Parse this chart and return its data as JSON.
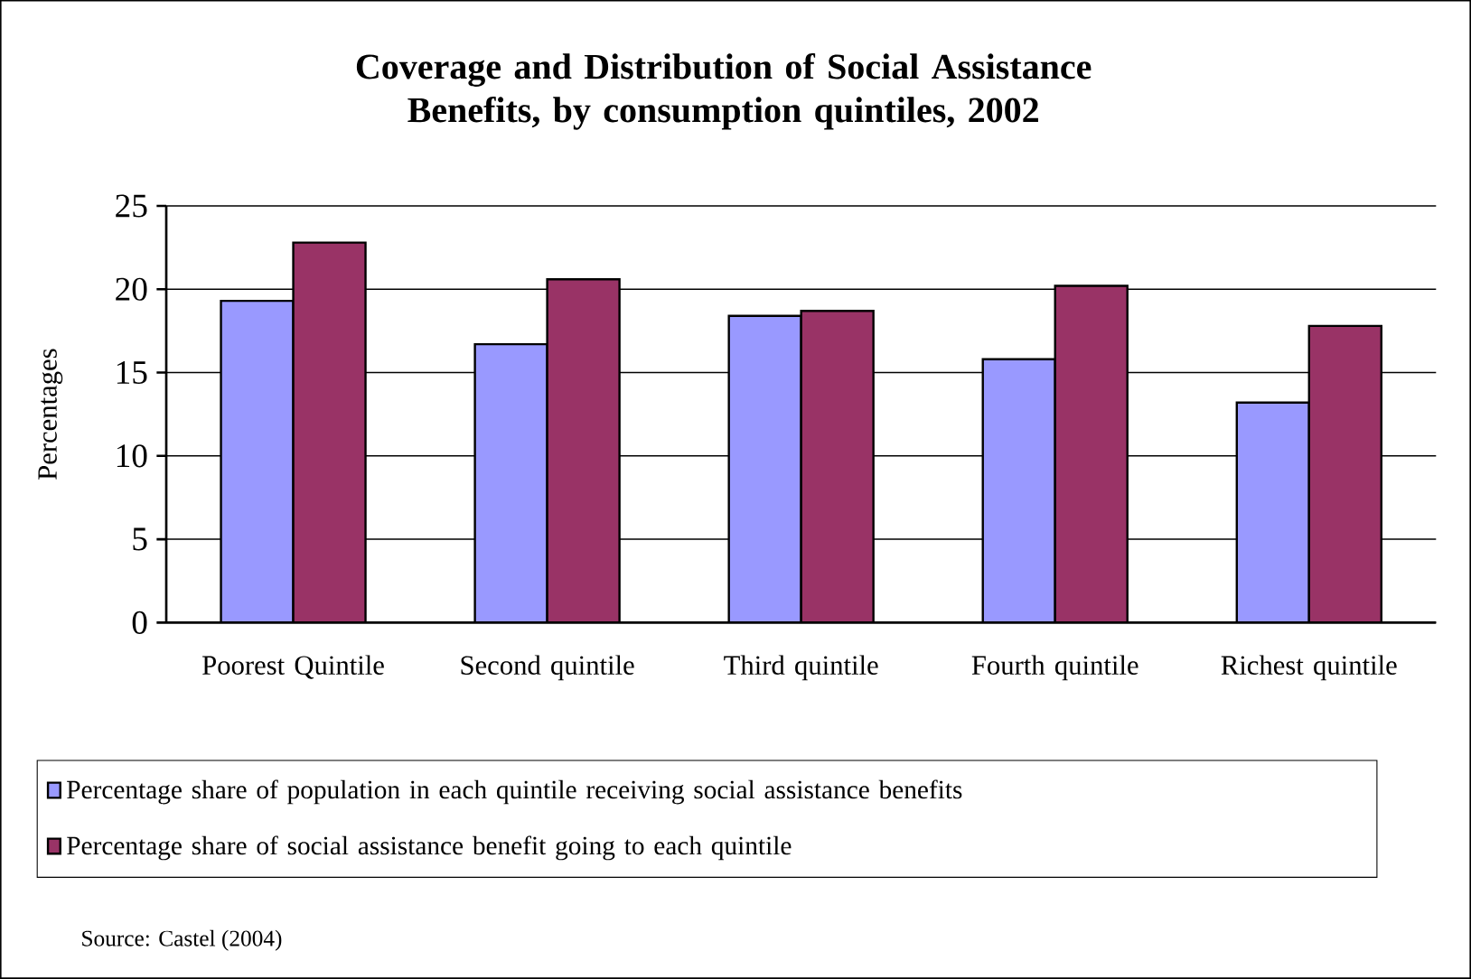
{
  "chart_data": {
    "type": "bar",
    "title": "Coverage and Distribution of Social Assistance Benefits, by consumption quintiles, 2002",
    "ylabel": "Percentages",
    "categories": [
      "Poorest Quintile",
      "Second quintile",
      "Third quintile",
      "Fourth quintile",
      "Richest quintile"
    ],
    "series": [
      {
        "name": "Percentage share of population in each quintile receiving social assistance benefits",
        "color": "#9999ff",
        "values": [
          19.3,
          16.7,
          18.4,
          15.8,
          13.2
        ]
      },
      {
        "name": "Percentage share of social assistance benefit going to each quintile",
        "color": "#993366",
        "values": [
          22.8,
          20.6,
          18.7,
          20.2,
          17.8
        ]
      }
    ],
    "ylim": [
      0,
      25
    ],
    "yticks": [
      0,
      5,
      10,
      15,
      20,
      25
    ],
    "grid": "y",
    "legend": "bottom",
    "annotations": [
      "Source: Castel (2004)"
    ]
  }
}
